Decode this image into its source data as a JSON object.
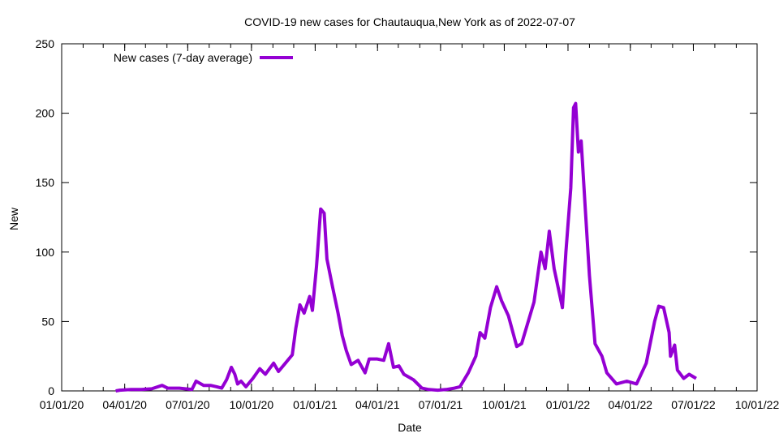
{
  "chart_data": {
    "type": "line",
    "title": "COVID-19 new cases for Chautauqua,New York as of 2022-07-07",
    "xlabel": "Date",
    "ylabel": "New",
    "x_unit": "days since 2020-01-01",
    "xlim": [
      0,
      1004
    ],
    "ylim": [
      0,
      250
    ],
    "y_ticks": [
      0,
      50,
      100,
      150,
      200,
      250
    ],
    "x_ticks": [
      {
        "day": 0,
        "label": "01/01/20"
      },
      {
        "day": 91,
        "label": "04/01/20"
      },
      {
        "day": 182,
        "label": "07/01/20"
      },
      {
        "day": 274,
        "label": "10/01/20"
      },
      {
        "day": 366,
        "label": "01/01/21"
      },
      {
        "day": 456,
        "label": "04/01/21"
      },
      {
        "day": 547,
        "label": "07/01/21"
      },
      {
        "day": 639,
        "label": "10/01/21"
      },
      {
        "day": 731,
        "label": "01/01/22"
      },
      {
        "day": 821,
        "label": "04/01/22"
      },
      {
        "day": 912,
        "label": "07/01/22"
      },
      {
        "day": 1004,
        "label": "10/01/22"
      }
    ],
    "legend": {
      "position": "top-left"
    },
    "grid": false,
    "series": [
      {
        "name": "New cases (7-day average)",
        "color": "#9400d3",
        "x": [
          78,
          84,
          100,
          115,
          130,
          145,
          153,
          170,
          188,
          194,
          205,
          215,
          224,
          231,
          238,
          245,
          250,
          254,
          259,
          266,
          276,
          286,
          294,
          306,
          313,
          323,
          333,
          338,
          344,
          350,
          358,
          362,
          368,
          374,
          379,
          383,
          391,
          399,
          405,
          411,
          418,
          428,
          438,
          444,
          455,
          465,
          472,
          479,
          487,
          494,
          508,
          520,
          530,
          543,
          555,
          567,
          575,
          587,
          598,
          604,
          611,
          619,
          628,
          635,
          645,
          657,
          664,
          670,
          682,
          692,
          698,
          704,
          711,
          723,
          728,
          735,
          739,
          742,
          746,
          750,
          756,
          762,
          770,
          780,
          787,
          801,
          816,
          830,
          844,
          856,
          862,
          869,
          877,
          879,
          885,
          889,
          898,
          906,
          916
        ],
        "y": [
          0,
          0.5,
          1,
          1,
          1.5,
          4,
          2,
          2,
          1,
          7,
          4,
          4,
          3,
          2,
          8,
          17,
          12,
          5,
          7,
          3,
          9,
          16,
          12,
          20,
          14,
          20,
          26,
          45,
          62,
          56,
          68,
          58,
          90,
          131,
          128,
          95,
          75,
          56,
          40,
          29,
          19,
          22,
          13,
          23,
          23,
          22,
          34,
          17,
          18,
          12,
          8,
          2,
          1,
          0.5,
          1,
          2,
          3,
          13,
          25,
          42,
          38,
          60,
          75,
          65,
          54,
          32,
          34,
          44,
          64,
          100,
          88,
          115,
          88,
          60,
          100,
          146,
          204,
          207,
          172,
          180,
          131,
          83,
          34,
          25,
          13,
          5,
          7,
          5,
          20,
          50,
          61,
          60,
          42,
          25,
          33,
          15,
          9,
          12,
          9
        ]
      }
    ]
  }
}
